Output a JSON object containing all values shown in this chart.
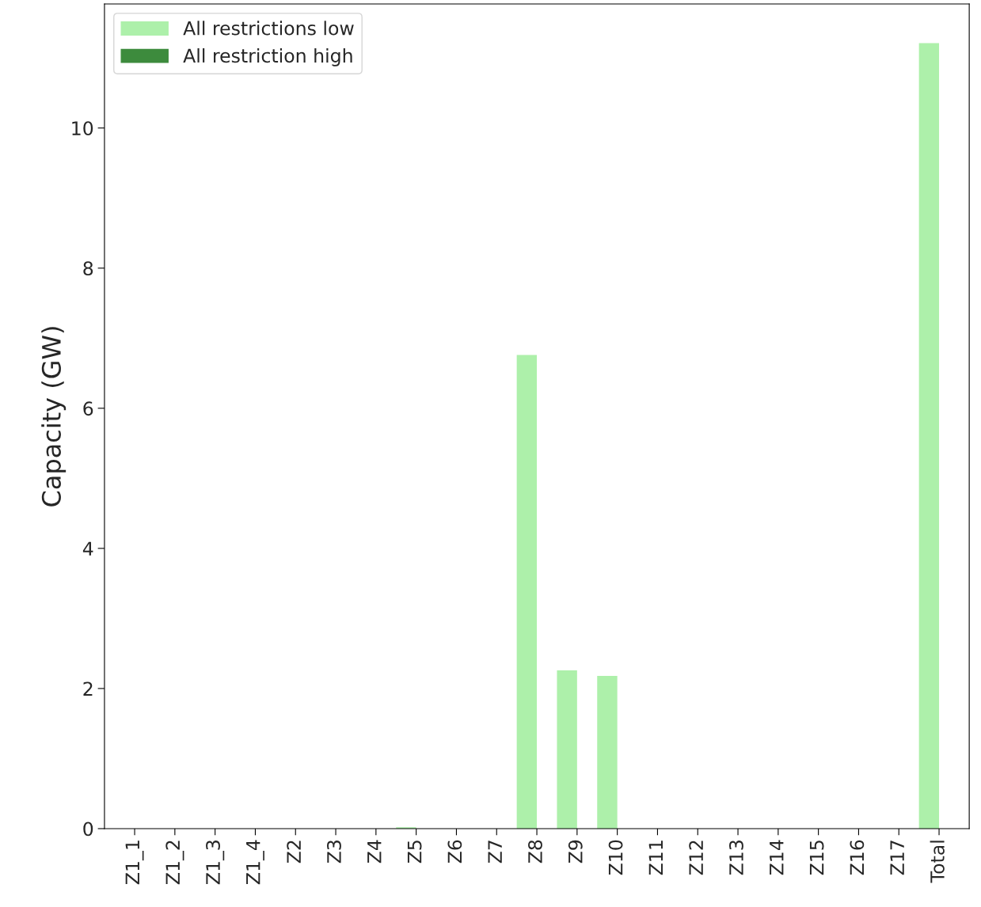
{
  "chart_data": {
    "type": "bar",
    "ylabel": "Capacity (GW)",
    "categories": [
      "Z1_1",
      "Z1_2",
      "Z1_3",
      "Z1_4",
      "Z2",
      "Z3",
      "Z4",
      "Z5",
      "Z6",
      "Z7",
      "Z8",
      "Z9",
      "Z10",
      "Z11",
      "Z12",
      "Z13",
      "Z14",
      "Z15",
      "Z16",
      "Z17",
      "Total"
    ],
    "series": [
      {
        "name": "All restrictions low",
        "color": "#adf0aa",
        "values": [
          0,
          0,
          0,
          0,
          0,
          0,
          0,
          0.02,
          0,
          0,
          6.76,
          2.26,
          2.18,
          0,
          0,
          0,
          0,
          0,
          0,
          0,
          11.21
        ]
      },
      {
        "name": "All restriction high",
        "color": "#3d8b3d",
        "values": [
          0,
          0,
          0,
          0,
          0,
          0,
          0,
          0,
          0,
          0,
          0,
          0,
          0,
          0,
          0,
          0,
          0,
          0,
          0,
          0,
          0
        ]
      }
    ],
    "ylim": [
      0,
      11.77
    ],
    "yticks": [
      0,
      2,
      4,
      6,
      8,
      10
    ],
    "legend": "top left",
    "grid": false
  }
}
